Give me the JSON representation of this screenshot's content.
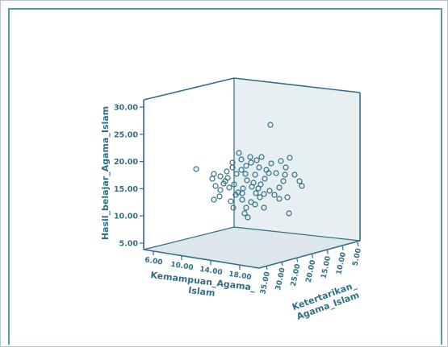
{
  "chart_data": {
    "type": "scatter",
    "subtype": "3d-scatter",
    "title": "",
    "zlabel": "Hasil_belajar_Agama_Islam",
    "xlabel": "Kemampuan_Agama_ Islam",
    "ylabel": "Ketertarikan_ Agama_Islam",
    "xlabel_lines": [
      "Kemampuan_Agama_",
      "Islam"
    ],
    "ylabel_lines": [
      "Ketertarikan_",
      "Agama_Islam"
    ],
    "z_ticks": [
      "5.00",
      "10.00",
      "15.00",
      "20.00",
      "25.00",
      "30.00"
    ],
    "x_ticks": [
      "6.00",
      "10.00",
      "14.00",
      "18.00"
    ],
    "y_ticks": [
      "35.00",
      "30.00",
      "25.00",
      "20.00",
      "15.00",
      "10.00",
      "5.00"
    ],
    "grid": false,
    "colors": {
      "panel_border": "#5a9aa6",
      "box_line": "#2f6f86",
      "floor": "#dde6ea",
      "back_wall": "#e8eff2",
      "marker": "#2f6f86"
    },
    "points_screen_approx": [
      [
        240,
        207
      ],
      [
        332,
        152
      ],
      [
        293,
        187
      ],
      [
        262,
        213
      ],
      [
        270,
        216
      ],
      [
        278,
        210
      ],
      [
        285,
        205
      ],
      [
        290,
        213
      ],
      [
        296,
        208
      ],
      [
        302,
        203
      ],
      [
        308,
        199
      ],
      [
        315,
        196
      ],
      [
        321,
        192
      ],
      [
        327,
        208
      ],
      [
        333,
        200
      ],
      [
        339,
        212
      ],
      [
        345,
        197
      ],
      [
        351,
        205
      ],
      [
        356,
        193
      ],
      [
        362,
        214
      ],
      [
        368,
        222
      ],
      [
        371,
        228
      ],
      [
        264,
        228
      ],
      [
        270,
        233
      ],
      [
        276,
        222
      ],
      [
        281,
        230
      ],
      [
        287,
        226
      ],
      [
        292,
        236
      ],
      [
        298,
        231
      ],
      [
        303,
        221
      ],
      [
        309,
        229
      ],
      [
        314,
        237
      ],
      [
        320,
        226
      ],
      [
        325,
        219
      ],
      [
        331,
        234
      ],
      [
        337,
        239
      ],
      [
        343,
        230
      ],
      [
        348,
        222
      ],
      [
        353,
        242
      ],
      [
        297,
        245
      ],
      [
        302,
        255
      ],
      [
        308,
        248
      ],
      [
        313,
        251
      ],
      [
        319,
        242
      ],
      [
        324,
        255
      ],
      [
        289,
        239
      ],
      [
        283,
        247
      ],
      [
        262,
        245
      ],
      [
        269,
        241
      ],
      [
        274,
        225
      ],
      [
        279,
        218
      ],
      [
        285,
        199
      ],
      [
        296,
        195
      ],
      [
        307,
        192
      ],
      [
        313,
        214
      ],
      [
        318,
        205
      ],
      [
        324,
        238
      ],
      [
        300,
        262
      ],
      [
        304,
        267
      ],
      [
        330,
        212
      ],
      [
        355,
        262
      ],
      [
        286,
        255
      ],
      [
        297,
        237
      ],
      [
        311,
        224
      ],
      [
        317,
        231
      ],
      [
        301,
        213
      ],
      [
        343,
        244
      ],
      [
        350,
        214
      ],
      [
        260,
        219
      ]
    ]
  }
}
